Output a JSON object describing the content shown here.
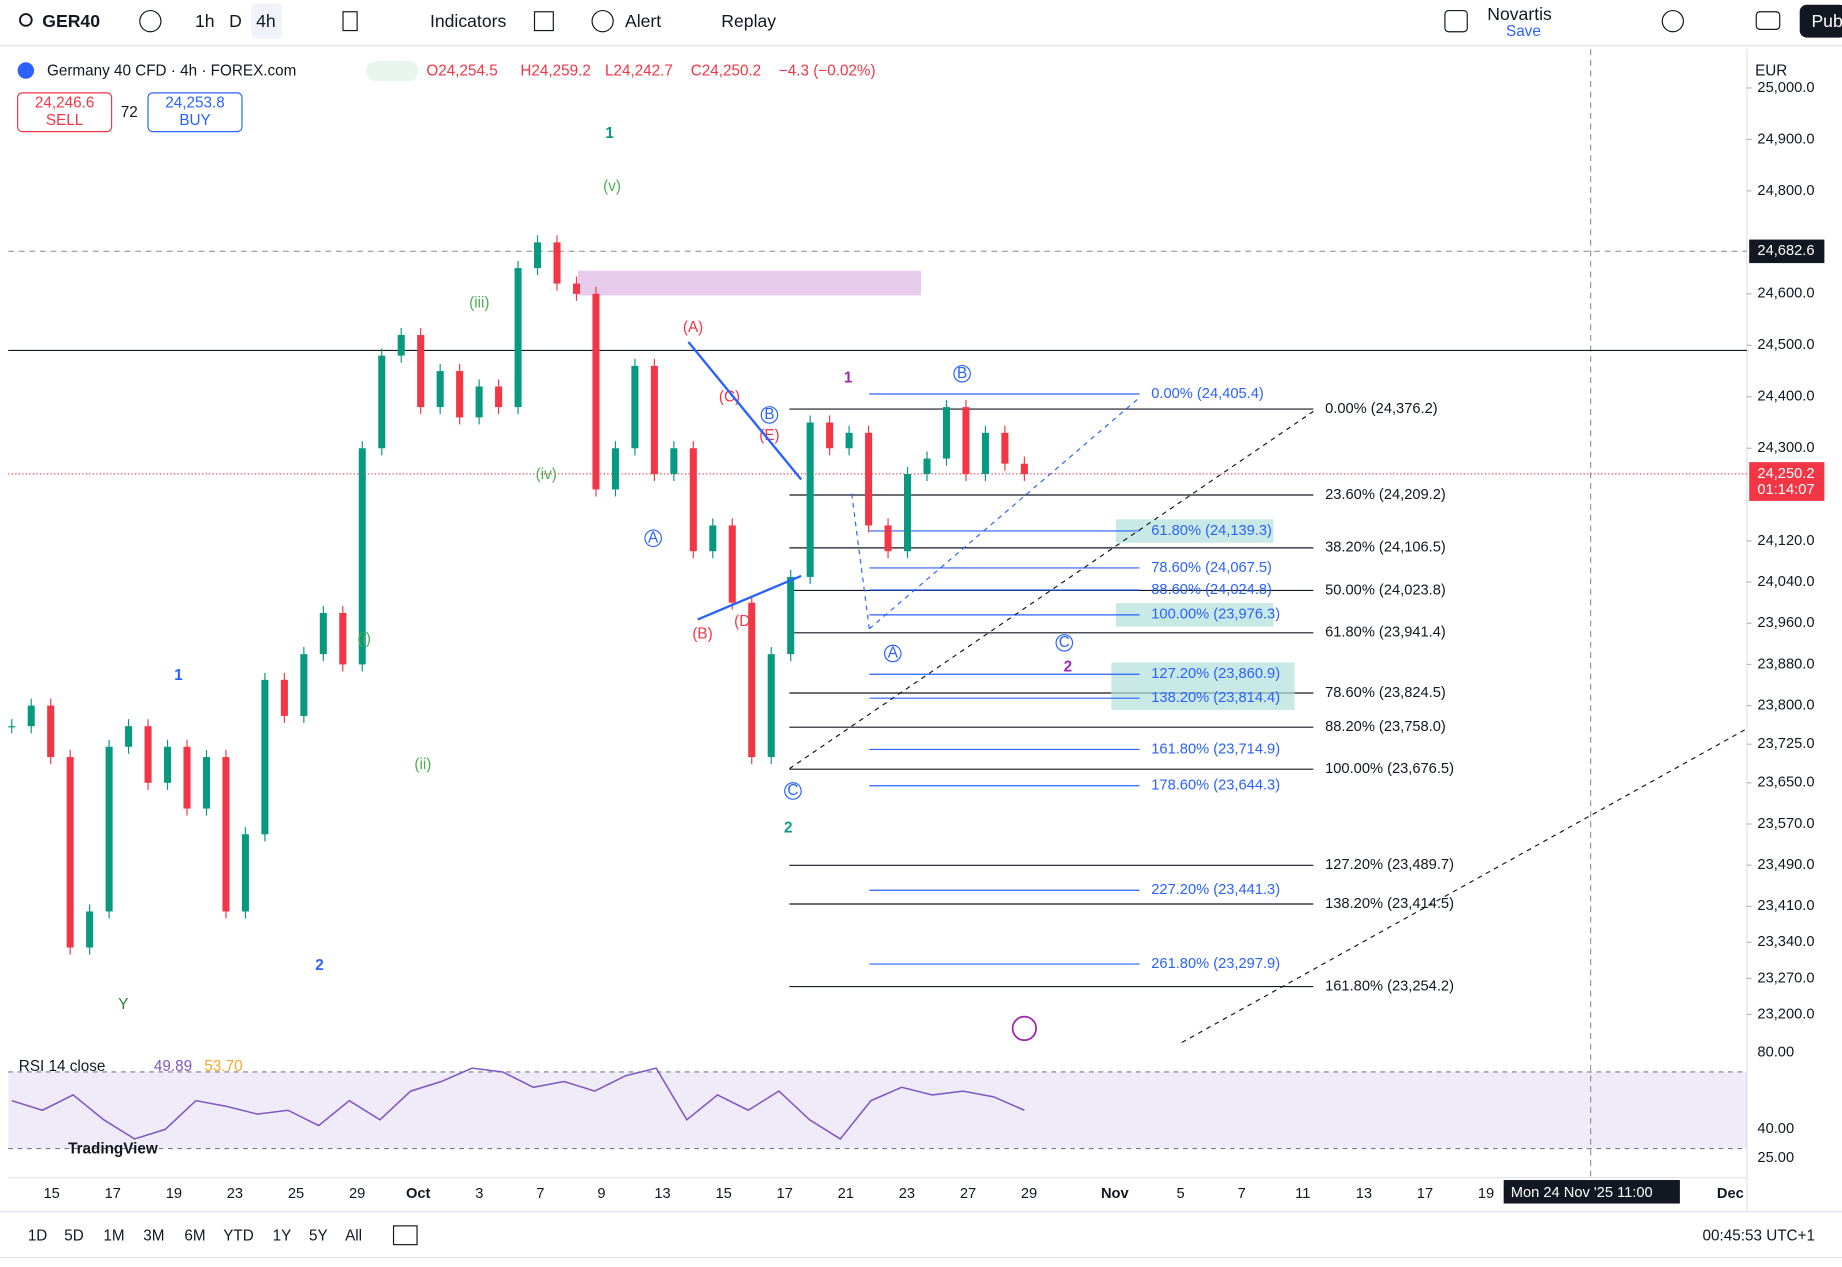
{
  "toolbar": {
    "symbol": "GER40",
    "intervals": [
      "1h",
      "D",
      "4h"
    ],
    "indicators": "Indicators",
    "alert": "Alert",
    "replay": "Replay",
    "account": "Novartis",
    "save": "Save",
    "publish": "Pub"
  },
  "legend": {
    "title": "Germany 40 CFD · 4h · FOREX.com",
    "open": "O24,254.5",
    "high": "H24,259.2",
    "low": "L24,242.7",
    "close": "C24,250.2",
    "change": "−4.3 (−0.02%)",
    "sell_price": "24,246.6",
    "sell": "SELL",
    "spread": "72",
    "buy_price": "24,253.8",
    "buy": "BUY"
  },
  "price_axis": {
    "currency": "EUR",
    "ylim": [
      23150,
      25075
    ],
    "ticks": [
      {
        "value": 25000,
        "label": "25,000.0"
      },
      {
        "value": 24900,
        "label": "24,900.0"
      },
      {
        "value": 24800,
        "label": "24,800.0"
      },
      {
        "value": 24600,
        "label": "24,600.0"
      },
      {
        "value": 24500,
        "label": "24,500.0"
      },
      {
        "value": 24400,
        "label": "24,400.0"
      },
      {
        "value": 24300,
        "label": "24,300.0"
      },
      {
        "value": 24120,
        "label": "24,120.0"
      },
      {
        "value": 24040,
        "label": "24,040.0"
      },
      {
        "value": 23960,
        "label": "23,960.0"
      },
      {
        "value": 23880,
        "label": "23,880.0"
      },
      {
        "value": 23800,
        "label": "23,800.0"
      },
      {
        "value": 23725,
        "label": "23,725.0"
      },
      {
        "value": 23650,
        "label": "23,650.0"
      },
      {
        "value": 23570,
        "label": "23,570.0"
      },
      {
        "value": 23490,
        "label": "23,490.0"
      },
      {
        "value": 23410,
        "label": "23,410.0"
      },
      {
        "value": 23340,
        "label": "23,340.0"
      },
      {
        "value": 23270,
        "label": "23,270.0"
      },
      {
        "value": 23200,
        "label": "23,200.0"
      }
    ],
    "crosshair": {
      "value": 24682.6,
      "label": "24,682.6"
    },
    "last": {
      "value": 24250.2,
      "label": "24,250.2"
    },
    "countdown": "01:14:07",
    "resistance": 24490,
    "zone": [
      24597,
      24645
    ]
  },
  "candles": {
    "closes": [
      23760,
      23800,
      23700,
      23330,
      23400,
      23720,
      23760,
      23650,
      23720,
      23600,
      23700,
      23400,
      23550,
      23850,
      23780,
      23900,
      23980,
      23880,
      24300,
      24480,
      24520,
      24380,
      24450,
      24360,
      24420,
      24380,
      24650,
      24700,
      24620,
      24600,
      24220,
      24300,
      24460,
      24250,
      24300,
      24100,
      24150,
      24000,
      23700,
      23900,
      24050,
      24350,
      24300,
      24330,
      24150,
      24100,
      24250,
      24280,
      24380,
      24250,
      24330,
      24270,
      24250
    ]
  },
  "fib_black": [
    {
      "label": "0.00% (24,376.2)",
      "price": 24376.2
    },
    {
      "label": "23.60% (24,209.2)",
      "price": 24209.2
    },
    {
      "label": "38.20% (24,106.5)",
      "price": 24106.5
    },
    {
      "label": "50.00% (24,023.8)",
      "price": 24023.8
    },
    {
      "label": "61.80% (23,941.4)",
      "price": 23941.4
    },
    {
      "label": "78.60% (23,824.5)",
      "price": 23824.5
    },
    {
      "label": "88.20% (23,758.0)",
      "price": 23758.0
    },
    {
      "label": "100.00% (23,676.5)",
      "price": 23676.5
    },
    {
      "label": "127.20% (23,489.7)",
      "price": 23489.7
    },
    {
      "label": "138.20% (23,414.5)",
      "price": 23414.5
    },
    {
      "label": "161.80% (23,254.2)",
      "price": 23254.2
    }
  ],
  "fib_blue": [
    {
      "label": "0.00% (24,405.4)",
      "price": 24405.4
    },
    {
      "label": "61.80% (24,139.3)",
      "price": 24139.3
    },
    {
      "label": "78.60% (24,067.5)",
      "price": 24067.5
    },
    {
      "label": "88.60% (24,024.8)",
      "price": 24024.8
    },
    {
      "label": "100.00% (23,976.3)",
      "price": 23976.3
    },
    {
      "label": "127.20% (23,860.9)",
      "price": 23860.9
    },
    {
      "label": "138.20% (23,814.4)",
      "price": 23814.4
    },
    {
      "label": "161.80% (23,714.9)",
      "price": 23714.9
    },
    {
      "label": "178.60% (23,644.3)",
      "price": 23644.3
    },
    {
      "label": "227.20% (23,441.3)",
      "price": 23441.3
    },
    {
      "label": "261.80% (23,297.9)",
      "price": 23297.9
    }
  ],
  "waves": [
    "1",
    "(v)",
    "(iii)",
    "(iv)",
    "(i)",
    "(ii)",
    "1",
    "2",
    "Y",
    "2",
    "1",
    "2",
    "(A)",
    "(B)",
    "(C)",
    "(D)",
    "(E)",
    "A",
    "B",
    "C",
    "A",
    "B",
    "C"
  ],
  "dates": [
    "15",
    "17",
    "19",
    "23",
    "25",
    "29",
    "Oct",
    "3",
    "7",
    "9",
    "13",
    "15",
    "17",
    "21",
    "23",
    "27",
    "29",
    "Nov",
    "5",
    "7",
    "11",
    "13",
    "17",
    "19",
    "Dec"
  ],
  "crosshair_date": "Mon 24 Nov '25  11:00",
  "rsi": {
    "label": "RSI 14 close",
    "value": "49.89",
    "ma": "53.70",
    "ylim": [
      16,
      86
    ],
    "ticks": [
      {
        "value": 80,
        "label": "80.00"
      },
      {
        "value": 40,
        "label": "40.00"
      },
      {
        "value": 25,
        "label": "25.00"
      }
    ],
    "band": [
      30,
      70
    ],
    "values": [
      55,
      50,
      58,
      45,
      35,
      40,
      55,
      52,
      48,
      50,
      42,
      55,
      45,
      60,
      65,
      72,
      70,
      62,
      65,
      60,
      68,
      72,
      45,
      58,
      50,
      60,
      45,
      35,
      55,
      62,
      58,
      60,
      57,
      50
    ]
  },
  "logo": "TradingView",
  "ranges": [
    "1D",
    "5D",
    "1M",
    "3M",
    "6M",
    "YTD",
    "1Y",
    "5Y",
    "All"
  ],
  "clock": "00:45:53 UTC+1"
}
